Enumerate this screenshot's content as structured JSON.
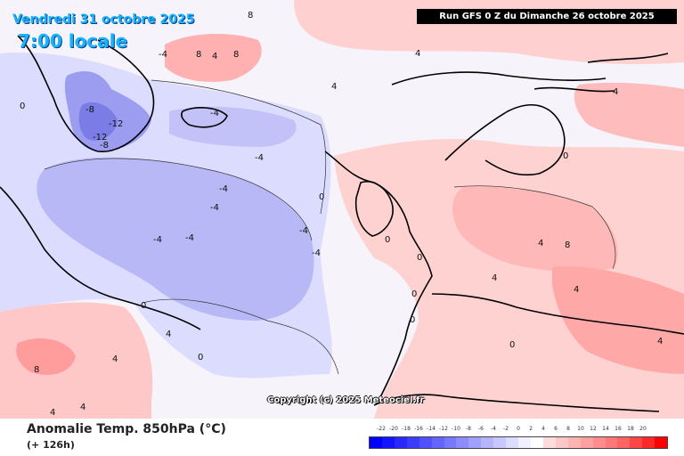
{
  "header": {
    "valid_date": "Vendredi 31 octobre 2025",
    "valid_time": "7:00 locale",
    "run_info": "Run GFS 0 Z du Dimanche 26 octobre 2025"
  },
  "map": {
    "copyright": "Copyright (c) 2025 Meteociel.fr",
    "contour_labels": [
      "0",
      "4",
      "8",
      "-4",
      "-8",
      "-12"
    ],
    "colors": {
      "cold_light": "#dcdcff",
      "cold_mid": "#b4b4fa",
      "cold_strong": "#8c8cf0",
      "neutral": "#ffffff",
      "warm_light": "#ffdcdc",
      "warm_mid": "#ffb4b4",
      "warm_strong": "#ff8c8c"
    }
  },
  "footer": {
    "parameter": "Anomalie Temp. 850hPa (°C)",
    "lead": "(+ 126h)"
  },
  "legend": {
    "ticks": [
      "-22",
      "-20",
      "-18",
      "-16",
      "-14",
      "-12",
      "-10",
      "-8",
      "-6",
      "-4",
      "-2",
      "0",
      "2",
      "4",
      "6",
      "8",
      "10",
      "12",
      "14",
      "16",
      "18",
      "20"
    ],
    "colors": [
      "#0000ff",
      "#1414ff",
      "#2828ff",
      "#3c3cff",
      "#5050ff",
      "#6464ff",
      "#7878ff",
      "#8c8cff",
      "#a0a0ff",
      "#b4b4ff",
      "#c8c8ff",
      "#dcdcff",
      "#f0f0ff",
      "#ffffff",
      "#ffdcdc",
      "#ffc8c8",
      "#ffb4b4",
      "#ffa0a0",
      "#ff8c8c",
      "#ff7878",
      "#ff6464",
      "#ff4646",
      "#ff2828",
      "#ff0000"
    ]
  }
}
